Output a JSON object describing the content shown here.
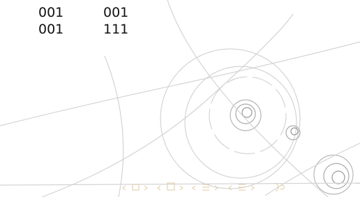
{
  "table": {
    "rows": [
      [
        "001",
        "001"
      ],
      [
        "001",
        "111"
      ]
    ]
  }
}
